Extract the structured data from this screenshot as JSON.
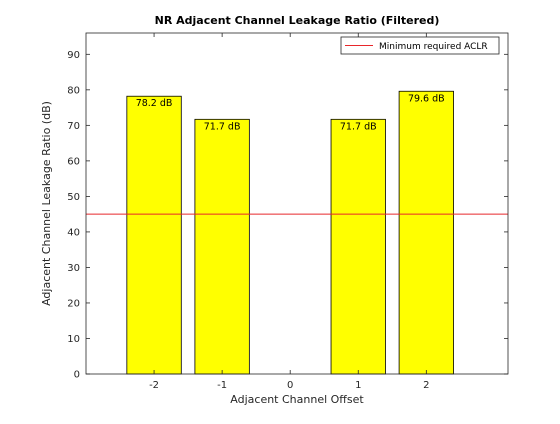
{
  "chart_data": {
    "type": "bar",
    "title": "NR Adjacent Channel Leakage Ratio (Filtered)",
    "xlabel": "Adjacent Channel Offset",
    "ylabel": "Adjacent Channel Leakage Ratio (dB)",
    "x": [
      -2,
      -1,
      0,
      1,
      2
    ],
    "x_tick_labels": [
      "-2",
      "-1",
      "0",
      "1",
      "2"
    ],
    "values": [
      78.2,
      71.7,
      null,
      71.7,
      79.6
    ],
    "bar_labels": [
      "78.2 dB",
      "71.7 dB",
      "",
      "71.7 dB",
      "79.6 dB"
    ],
    "xlim": [
      -3,
      3.2
    ],
    "ylim": [
      0,
      96
    ],
    "y_ticks": [
      0,
      10,
      20,
      30,
      40,
      50,
      60,
      70,
      80,
      90
    ],
    "bar_color": "#ffff00",
    "bar_edge_color": "#000000",
    "reference_line": {
      "name": "Minimum required ACLR",
      "value": 45,
      "color": "#e8272b"
    },
    "legend_position": "top-right",
    "grid": false
  }
}
